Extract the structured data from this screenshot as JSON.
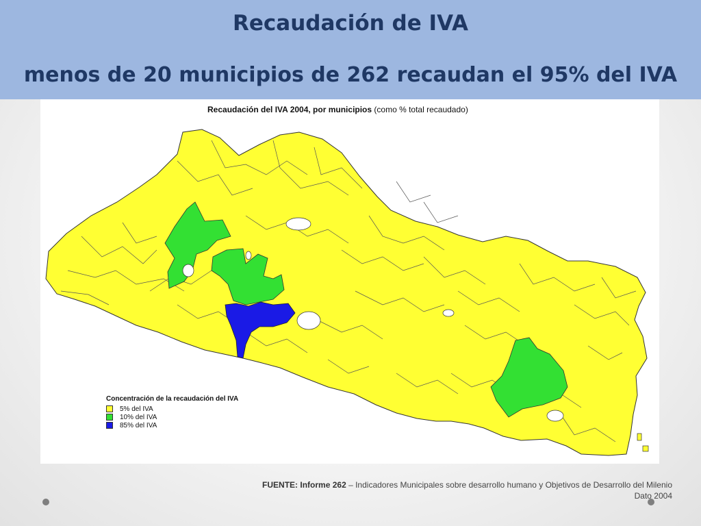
{
  "slide": {
    "title_line1": "Recaudación de IVA",
    "title_line2": "menos de 20 municipios de 262 recaudan el 95% del IVA"
  },
  "map": {
    "title_bold": "Recaudación del IVA 2004, por municipios",
    "title_rest": " (como % total recaudado)",
    "legend": {
      "title": "Concentración de la recaudación del IVA",
      "items": [
        {
          "label": "5% del IVA",
          "color": "#ffff33"
        },
        {
          "label": "10% del IVA",
          "color": "#33e033"
        },
        {
          "label": "85% del IVA",
          "color": "#1a1ae6"
        }
      ]
    }
  },
  "source": {
    "label": "FUENTE: Informe 262",
    "text": " – Indicadores Municipales sobre desarrollo humano y Objetivos de Desarrollo del Milenio",
    "line2": "Dato 2004"
  }
}
